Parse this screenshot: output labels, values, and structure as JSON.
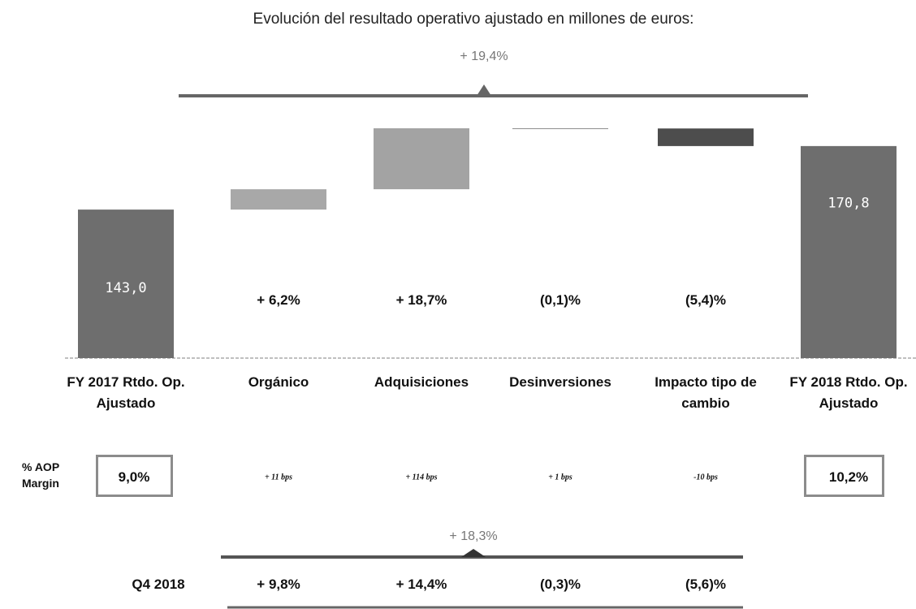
{
  "chart_data": {
    "type": "waterfall",
    "title": "Evolución del resultado operativo ajustado en millones de euros:",
    "total_change_label": "+ 19,4%",
    "categories": [
      "FY 2017 Rtdo. Op. Ajustado",
      "Orgánico",
      "Adquisiciones",
      "Desinversiones",
      "Impacto tipo de cambio",
      "FY 2018 Rtdo. Op. Ajustado"
    ],
    "measure": [
      "total",
      "relative",
      "relative",
      "relative",
      "relative",
      "total"
    ],
    "values": [
      143.0,
      8.9,
      26.7,
      -0.1,
      -7.7,
      170.8
    ],
    "value_labels": [
      "143,0",
      null,
      null,
      null,
      null,
      "170,8"
    ],
    "colors": [
      "#6e6e6e",
      "#a8a8a8",
      "#a3a3a3",
      "#8a8a8a",
      "#4d4d4d",
      "#6e6e6e"
    ],
    "growth_labels": [
      null,
      "+ 6,2%",
      "+ 18,7%",
      "(0,1)%",
      "(5,4)%",
      null
    ],
    "ylim": [
      78,
      180
    ],
    "margin_row": {
      "label": "% AOP Margin",
      "entries": [
        "9,0%",
        "+ 11 bps",
        "+ 114 bps",
        "+ 1 bps",
        "-10 bps",
        "10,2%"
      ]
    },
    "q4_row": {
      "total_change_label": "+ 18,3%",
      "label": "Q4 2018",
      "entries": [
        null,
        "+ 9,8%",
        "+ 14,4%",
        "(0,3)%",
        "(5,6)%",
        null
      ]
    }
  }
}
